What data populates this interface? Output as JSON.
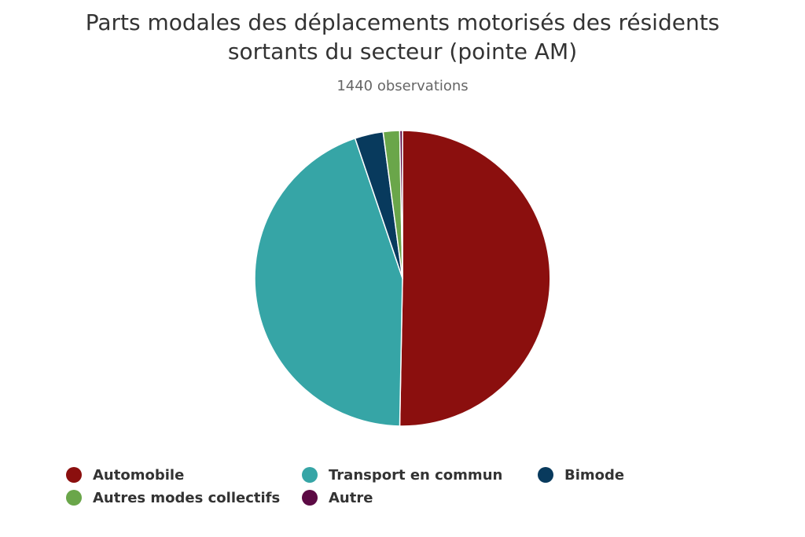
{
  "chart_data": {
    "type": "pie",
    "title": "Parts modales des déplacements motorisés des résidents sortants du secteur (pointe AM)",
    "title_lines": [
      "Parts modales des déplacements motorisés des résidents",
      "sortants du secteur (pointe AM)"
    ],
    "subtitle": "1440 observations",
    "slices": [
      {
        "name": "Automobile",
        "value": 50.3,
        "color": "#8b0f0e"
      },
      {
        "name": "Transport en commun",
        "value": 44.5,
        "color": "#36a5a6"
      },
      {
        "name": "Bimode",
        "value": 3.1,
        "color": "#083a5d"
      },
      {
        "name": "Autres modes collectifs",
        "value": 1.8,
        "color": "#6aa64a"
      },
      {
        "name": "Autre",
        "value": 0.3,
        "color": "#5c0a44"
      }
    ],
    "legend_position": "bottom",
    "start_angle_deg": 0,
    "direction": "clockwise"
  }
}
